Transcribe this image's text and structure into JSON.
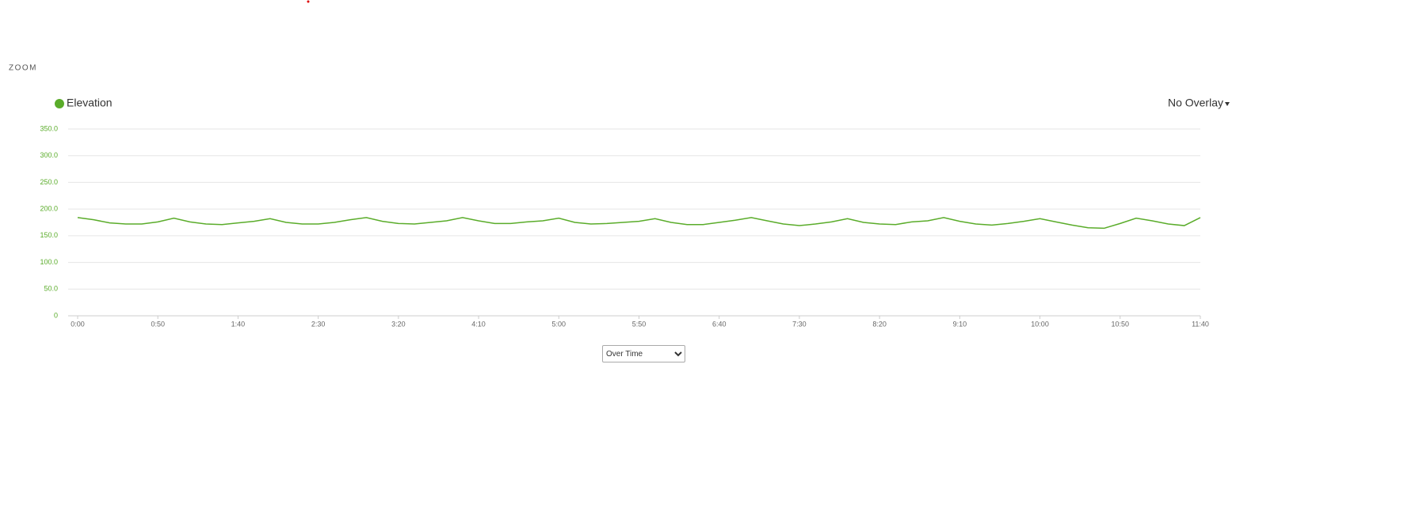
{
  "zoom_label": "ZOOM",
  "overlay_menu": "No Overlay",
  "view_select": {
    "selected": "Over Time"
  },
  "chart_data": {
    "type": "line",
    "x": [
      0,
      10,
      20,
      30,
      40,
      50,
      60,
      70,
      80,
      90,
      100,
      110,
      120,
      130,
      140,
      150,
      160,
      170,
      180,
      190,
      200,
      210,
      220,
      230,
      240,
      250,
      260,
      270,
      280,
      290,
      300,
      310,
      320,
      330,
      340,
      350,
      360,
      370,
      380,
      390,
      400,
      410,
      420,
      430,
      440,
      450,
      460,
      470,
      480,
      490,
      500,
      510,
      520,
      530,
      540,
      550,
      560,
      570,
      580,
      590,
      600,
      610,
      620,
      630,
      640,
      650,
      660,
      670,
      680,
      690,
      700
    ],
    "series": [
      {
        "name": "Elevation",
        "color": "#5aac2a",
        "values": [
          184,
          180,
          174,
          172,
          172,
          176,
          183,
          176,
          172,
          171,
          174,
          177,
          182,
          175,
          172,
          172,
          175,
          180,
          184,
          177,
          173,
          172,
          175,
          178,
          184,
          178,
          173,
          173,
          176,
          178,
          183,
          175,
          172,
          173,
          175,
          177,
          182,
          175,
          171,
          171,
          175,
          179,
          184,
          178,
          172,
          169,
          172,
          176,
          182,
          175,
          172,
          171,
          176,
          178,
          184,
          177,
          172,
          170,
          173,
          177,
          182,
          176,
          170,
          165,
          164,
          173,
          183,
          178,
          172,
          169,
          184
        ]
      }
    ],
    "xlim": [
      0,
      700
    ],
    "xticks": [
      {
        "value": 0,
        "label": "0:00"
      },
      {
        "value": 50,
        "label": "0:50"
      },
      {
        "value": 100,
        "label": "1:40"
      },
      {
        "value": 150,
        "label": "2:30"
      },
      {
        "value": 200,
        "label": "3:20"
      },
      {
        "value": 250,
        "label": "4:10"
      },
      {
        "value": 300,
        "label": "5:00"
      },
      {
        "value": 350,
        "label": "5:50"
      },
      {
        "value": 400,
        "label": "6:40"
      },
      {
        "value": 450,
        "label": "7:30"
      },
      {
        "value": 500,
        "label": "8:20"
      },
      {
        "value": 550,
        "label": "9:10"
      },
      {
        "value": 600,
        "label": "10:00"
      },
      {
        "value": 650,
        "label": "10:50"
      },
      {
        "value": 700,
        "label": "11:40"
      }
    ],
    "ylim": [
      0,
      350
    ],
    "yticks": [
      0,
      {
        "value": 50,
        "label": "50.0"
      },
      {
        "value": 100,
        "label": "100.0"
      },
      {
        "value": 150,
        "label": "150.0"
      },
      {
        "value": 200,
        "label": "200.0"
      },
      {
        "value": 250,
        "label": "250.0"
      },
      {
        "value": 300,
        "label": "300.0"
      },
      {
        "value": 350,
        "label": "350.0"
      }
    ],
    "grid": true
  }
}
